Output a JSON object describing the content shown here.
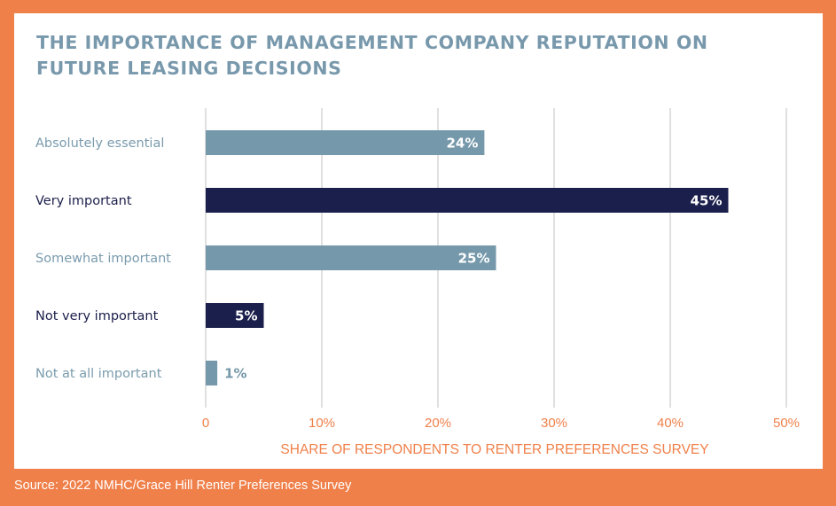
{
  "colors": {
    "background": "#f0804a",
    "light_bar": "#7598aa",
    "dark_bar": "#1b1f4b",
    "accent_text": "#f0804a",
    "grid": "#cfcfcf"
  },
  "source": "Source: 2022 NMHC/Grace Hill Renter Preferences Survey",
  "chart_data": {
    "type": "bar",
    "orientation": "horizontal",
    "title": "THE IMPORTANCE OF MANAGEMENT COMPANY REPUTATION ON FUTURE LEASING DECISIONS",
    "xlabel": "SHARE OF RESPONDENTS TO RENTER PREFERENCES SURVEY",
    "ylabel": "",
    "xlim": [
      0,
      50
    ],
    "xticks": [
      0,
      10,
      20,
      30,
      40,
      50
    ],
    "xtick_labels": [
      "0",
      "10%",
      "20%",
      "30%",
      "40%",
      "50%"
    ],
    "grid": "vertical",
    "categories": [
      "Absolutely essential",
      "Very important",
      "Somewhat important",
      "Not very important",
      "Not at all important"
    ],
    "values": [
      24,
      45,
      25,
      5,
      1
    ],
    "data_labels": [
      "24%",
      "45%",
      "25%",
      "5%",
      "1%"
    ],
    "bar_colors": [
      "#7598aa",
      "#1b1f4b",
      "#7598aa",
      "#1b1f4b",
      "#7598aa"
    ]
  }
}
